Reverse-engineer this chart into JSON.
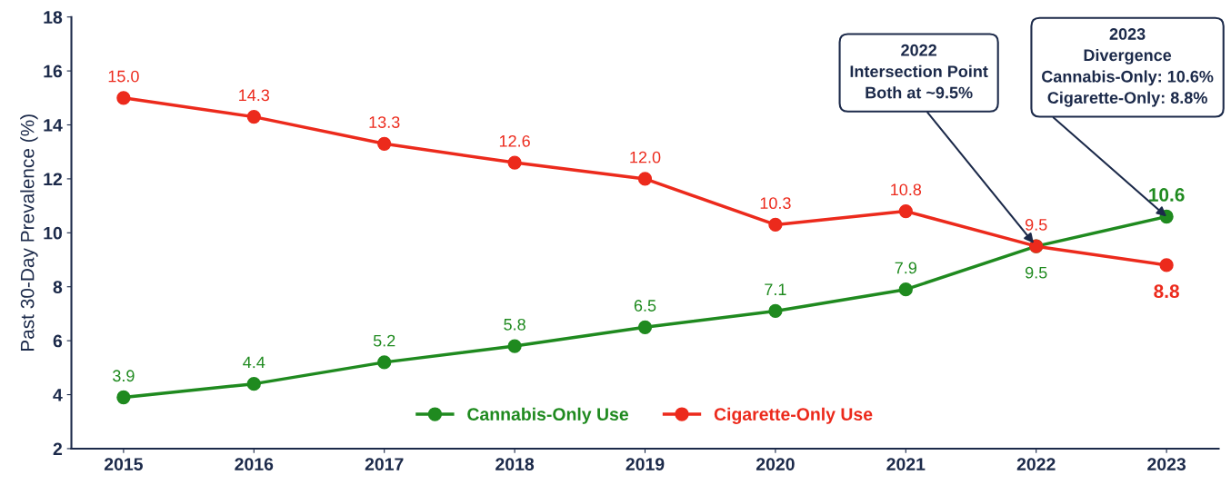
{
  "chart_data": {
    "type": "line",
    "ylabel": "Past 30-Day Prevalence (%)",
    "categories": [
      "2015",
      "2016",
      "2017",
      "2018",
      "2019",
      "2020",
      "2021",
      "2022",
      "2023"
    ],
    "series": [
      {
        "name": "Cannabis-Only Use",
        "color": "#1f8a1f",
        "values": [
          3.9,
          4.4,
          5.2,
          5.8,
          6.5,
          7.1,
          7.9,
          9.5,
          10.6
        ],
        "value_labels": [
          "3.9",
          "4.4",
          "5.2",
          "5.8",
          "6.5",
          "7.1",
          "7.9",
          "9.5",
          "10.6"
        ]
      },
      {
        "name": "Cigarette-Only Use",
        "color": "#ec2a1c",
        "values": [
          15.0,
          14.3,
          13.3,
          12.6,
          12.0,
          10.3,
          10.8,
          9.5,
          8.8
        ],
        "value_labels": [
          "15.0",
          "14.3",
          "13.3",
          "12.6",
          "12.0",
          "10.3",
          "10.8",
          "9.5",
          "8.8"
        ]
      }
    ],
    "ylim": [
      2,
      18
    ],
    "yticks": [
      2,
      4,
      6,
      8,
      10,
      12,
      14,
      16,
      18
    ],
    "data_labels": true,
    "marker": "circle",
    "line_style": "solid",
    "grid": false,
    "legend": "bottom",
    "annotations": [
      {
        "text": "2022\nIntersection Point\nBoth at ~9.5%",
        "x": "2022",
        "y": 9.5
      },
      {
        "text": "2023\nDivergence\nCannabis-Only: 10.6%\nCigarette-Only: 8.8%",
        "x": "2023",
        "y": 10.6
      }
    ]
  }
}
